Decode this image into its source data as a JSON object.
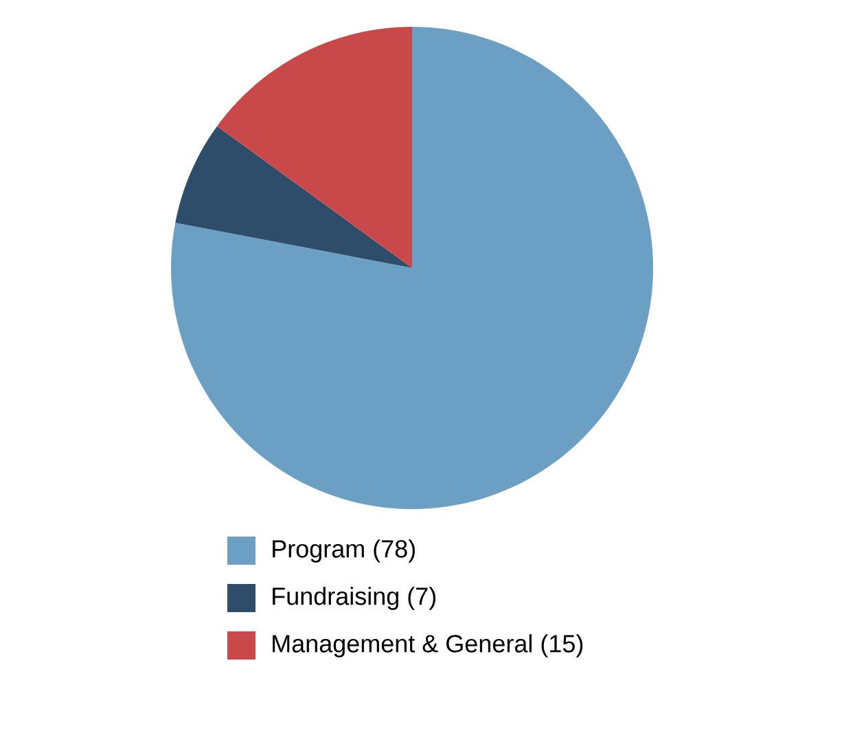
{
  "chart_data": {
    "type": "pie",
    "categories": [
      "Program (78)",
      "Fundraising (7)",
      "Management & General (15)"
    ],
    "values": [
      78,
      7,
      15
    ],
    "colors": [
      "#6b9fc4",
      "#2e4d6b",
      "#c9494a"
    ],
    "legend": "bottom"
  }
}
